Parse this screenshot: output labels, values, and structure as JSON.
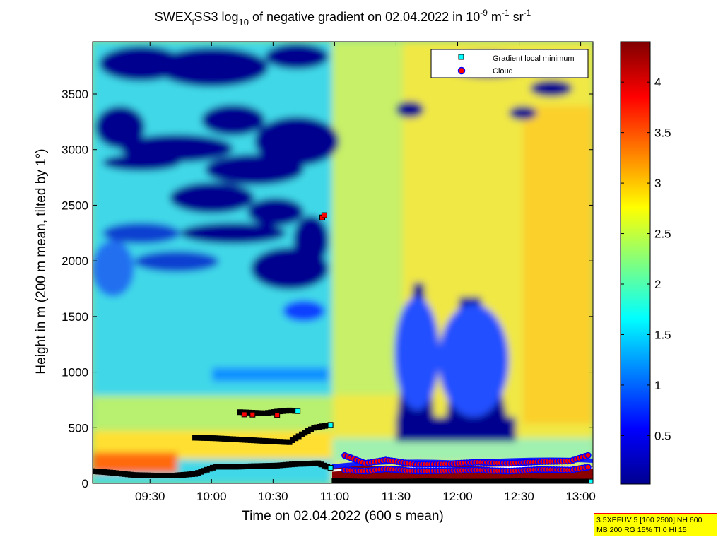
{
  "chart_data": {
    "type": "heatmap",
    "title": {
      "prefix": "SWEX",
      "prefix_sub": "l",
      "mid": "SS3 log",
      "mid_sub": "10",
      "main": " of negative gradient on 02.04.2022 in 10",
      "sup1": "-9",
      "unit1": " m",
      "sup2": "-1",
      "unit2": " sr",
      "sup3": "-1"
    },
    "xlabel": "Time on 02.04.2022 (600 s mean)",
    "ylabel": "Height in m (200 m mean, tilted by 1°)",
    "x_range": [
      "09:02",
      "13:06"
    ],
    "x_ticks": [
      "09:30",
      "10:00",
      "10:30",
      "11:00",
      "11:30",
      "12:00",
      "12:30",
      "13:00"
    ],
    "y_range": [
      0,
      3970
    ],
    "y_ticks": [
      0,
      500,
      1000,
      1500,
      2000,
      2500,
      3000,
      3500
    ],
    "colorbar": {
      "range": [
        0.02,
        4.4
      ],
      "ticks": [
        "0.5",
        "1",
        "1.5",
        "2",
        "2.5",
        "3",
        "3.5",
        "4"
      ],
      "colormap": "jet"
    },
    "legend": {
      "position": "top-right",
      "entries": [
        {
          "label": "Gradient local minimum",
          "marker": "square",
          "color": "#00ffff"
        },
        {
          "label": "Cloud",
          "marker": "circle",
          "color": "#ff0000"
        }
      ]
    },
    "series": [
      {
        "name": "Gradient local minimum",
        "marker": "square",
        "color": "#00ffff",
        "layers": [
          {
            "x": [
              "09:02",
              "09:12",
              "09:22",
              "09:32",
              "09:42",
              "09:52",
              "10:02",
              "10:12",
              "10:22",
              "10:32",
              "10:42",
              "10:52",
              "10:58"
            ],
            "y": [
              110,
              95,
              75,
              70,
              70,
              85,
              150,
              150,
              155,
              160,
              175,
              180,
              140
            ]
          },
          {
            "x": [
              "09:52",
              "10:02",
              "10:12",
              "10:22",
              "10:32",
              "10:38",
              "10:44",
              "10:50",
              "10:58"
            ],
            "y": [
              410,
              405,
              395,
              385,
              375,
              370,
              440,
              500,
              525
            ]
          },
          {
            "x": [
              "10:14",
              "10:20",
              "10:26",
              "10:32",
              "10:38",
              "10:42"
            ],
            "y": [
              640,
              635,
              630,
              645,
              655,
              650
            ]
          },
          {
            "x": [
              "11:00",
              "11:15",
              "11:30",
              "11:45",
              "12:00",
              "12:15",
              "12:30",
              "12:45",
              "13:00",
              "13:05"
            ],
            "y": [
              20,
              15,
              15,
              18,
              15,
              15,
              18,
              15,
              15,
              15
            ]
          }
        ]
      },
      {
        "name": "Cloud",
        "marker": "circle",
        "color": "#ff0000",
        "points": [
          {
            "x": "10:16",
            "y": 620
          },
          {
            "x": "10:20",
            "y": 618
          },
          {
            "x": "10:32",
            "y": 615
          },
          {
            "x": "10:54",
            "y": 2390
          },
          {
            "x": "10:55",
            "y": 2410
          }
        ],
        "layers": [
          {
            "x": [
              "11:05",
              "11:15",
              "11:25",
              "11:40",
              "11:55",
              "12:10",
              "12:25",
              "12:40",
              "12:55",
              "13:05"
            ],
            "y": [
              250,
              180,
              210,
              170,
              175,
              190,
              180,
              195,
              200,
              260
            ]
          },
          {
            "x": [
              "11:05",
              "11:15",
              "11:25",
              "11:40",
              "11:55",
              "12:10",
              "12:25",
              "12:40",
              "12:55",
              "13:05"
            ],
            "y": [
              120,
              110,
              130,
              110,
              115,
              120,
              110,
              125,
              120,
              150
            ]
          }
        ]
      }
    ],
    "features": {
      "gradient_scale_note": "background field log10 of negative gradient"
    }
  },
  "info_box": {
    "line1": "3.5XEFUV 5 [100 2500] NH 600",
    "line2": "MB 200 RG 15% TI 0 HI 15"
  }
}
